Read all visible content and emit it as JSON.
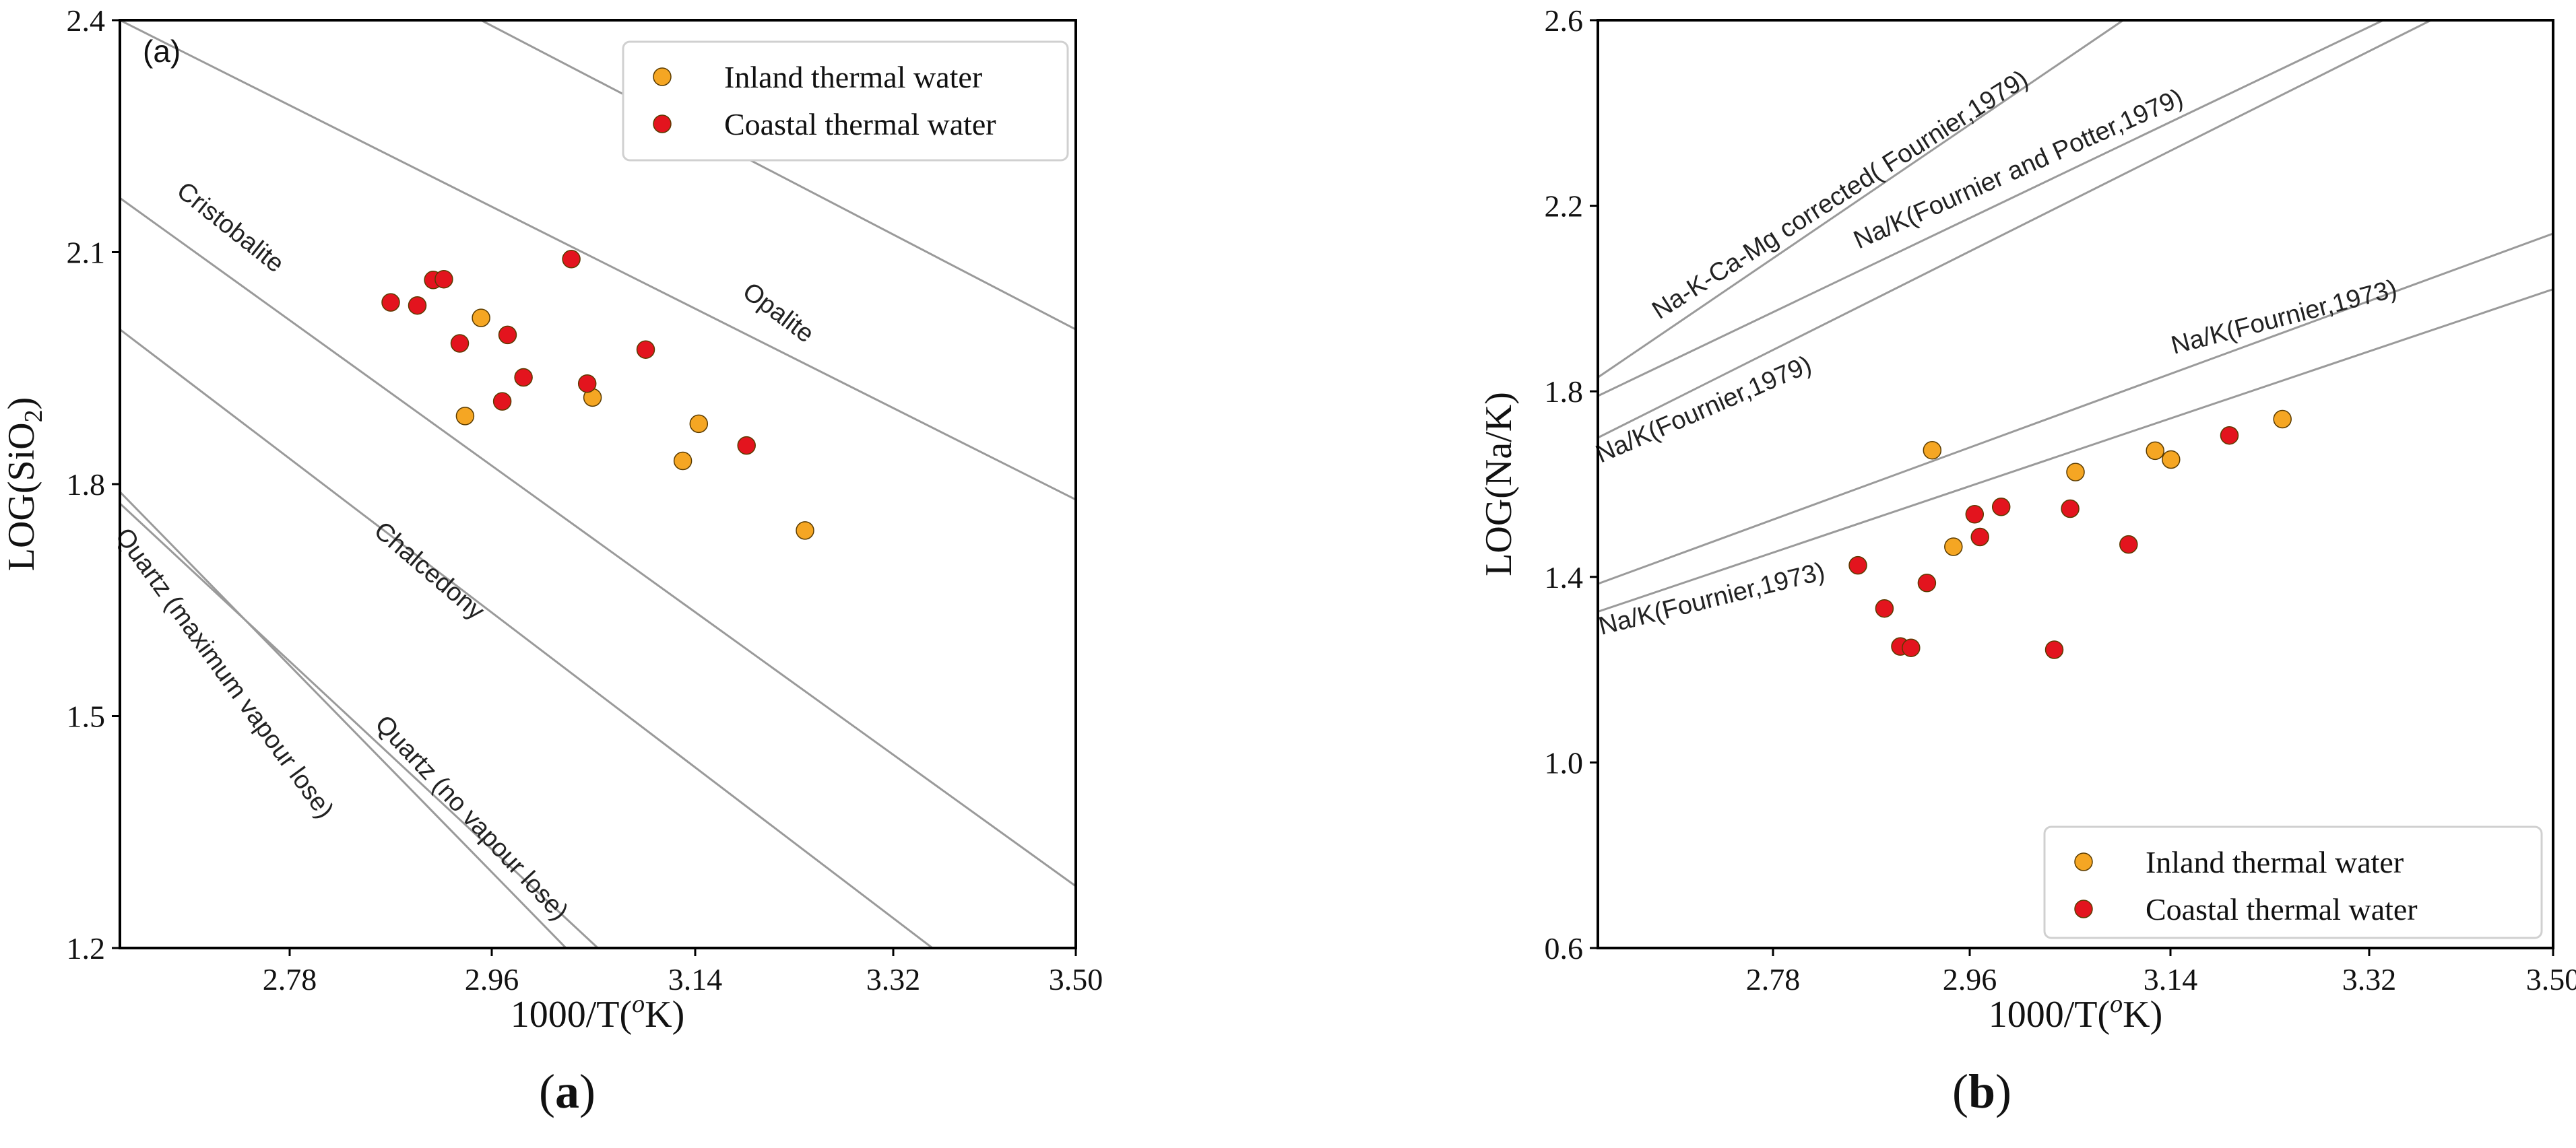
{
  "chart_data": [
    {
      "type": "scatter",
      "panel_tag": "(a)",
      "xlabel": "1000/T(oK)",
      "ylabel": "LOG(SiO2)",
      "xlim": [
        2.6,
        3.5
      ],
      "ylim": [
        1.2,
        2.4
      ],
      "xticks": [
        "2.78",
        "2.96",
        "3.14",
        "3.32",
        "3.50"
      ],
      "yticks": [
        "1.2",
        "1.5",
        "1.8",
        "2.1",
        "2.4"
      ],
      "legend_position": "top-right",
      "series": [
        {
          "name": "Inland thermal water",
          "color": "#f5a623",
          "points": [
            [
              2.94,
              2.015
            ],
            [
              2.925,
              1.888
            ],
            [
              3.045,
              1.912
            ],
            [
              3.13,
              1.83
            ],
            [
              3.145,
              1.878
            ],
            [
              3.245,
              1.74
            ]
          ]
        },
        {
          "name": "Coastal thermal water",
          "color": "#e3141e",
          "points": [
            [
              2.855,
              2.035
            ],
            [
              2.88,
              2.031
            ],
            [
              2.895,
              2.064
            ],
            [
              2.905,
              2.065
            ],
            [
              2.92,
              1.982
            ],
            [
              2.965,
              1.993
            ],
            [
              2.96,
              1.907
            ],
            [
              2.98,
              1.938
            ],
            [
              3.025,
              2.091
            ],
            [
              3.04,
              1.93
            ],
            [
              3.095,
              1.974
            ],
            [
              3.19,
              1.85
            ]
          ]
        }
      ],
      "curves": [
        {
          "name": "Opalite",
          "points": [
            [
              2.94,
              2.4
            ],
            [
              3.5,
              2.0
            ]
          ]
        },
        {
          "name": "",
          "points": [
            [
              2.6,
              2.4
            ],
            [
              3.5,
              1.78
            ]
          ]
        },
        {
          "name": "Cristobalite",
          "points": [
            [
              2.6,
              2.17
            ],
            [
              3.5,
              1.28
            ]
          ]
        },
        {
          "name": "Chalcedony",
          "points": [
            [
              2.6,
              2.0
            ],
            [
              3.365,
              1.2
            ]
          ]
        },
        {
          "name": "Quartz (no vapour lose)",
          "points": [
            [
              2.6,
              1.775
            ],
            [
              3.05,
              1.2
            ]
          ]
        },
        {
          "name": "Quartz (maximum vapour lose)",
          "points": [
            [
              2.6,
              1.79
            ],
            [
              3.02,
              1.2
            ]
          ]
        }
      ],
      "caption": "(a)"
    },
    {
      "type": "scatter",
      "xlabel": "1000/T(oK)",
      "ylabel": "LOG(Na/K)",
      "xlim": [
        2.6,
        3.5
      ],
      "ylim": [
        0.6,
        2.6
      ],
      "xticks": [
        "2.78",
        "2.96",
        "3.14",
        "3.32",
        "3.50"
      ],
      "yticks": [
        "0.6",
        "1.0",
        "1.4",
        "1.8",
        "2.2",
        "2.6"
      ],
      "legend_position": "bottom-right",
      "series": [
        {
          "name": "Inland thermal water",
          "color": "#f5a623",
          "points": [
            [
              2.915,
              1.673
            ],
            [
              2.935,
              1.465
            ],
            [
              3.05,
              1.626
            ],
            [
              3.125,
              1.672
            ],
            [
              3.14,
              1.653
            ],
            [
              3.245,
              1.74
            ]
          ]
        },
        {
          "name": "Coastal thermal water",
          "color": "#e3141e",
          "points": [
            [
              2.845,
              1.425
            ],
            [
              2.87,
              1.332
            ],
            [
              2.885,
              1.25
            ],
            [
              2.895,
              1.247
            ],
            [
              2.91,
              1.387
            ],
            [
              2.955,
              1.535
            ],
            [
              2.96,
              1.486
            ],
            [
              2.98,
              1.551
            ],
            [
              3.045,
              1.547
            ],
            [
              3.03,
              1.243
            ],
            [
              3.1,
              1.47
            ],
            [
              3.195,
              1.705
            ]
          ]
        }
      ],
      "curves": [
        {
          "name": "Na-K-Ca-Mg corrected( Fournier,1979)",
          "points": [
            [
              2.6,
              1.83
            ],
            [
              3.095,
              2.6
            ]
          ]
        },
        {
          "name": "Na/K(Fournier and Potter,1979)",
          "points": [
            [
              2.6,
              1.79
            ],
            [
              3.34,
              2.6
            ]
          ]
        },
        {
          "name": "Na/K(Fournier,1979)",
          "points": [
            [
              2.6,
              1.7
            ],
            [
              3.385,
              2.6
            ]
          ]
        },
        {
          "name": "Na/K(Fournier,1973)",
          "points": [
            [
              2.6,
              1.385
            ],
            [
              3.5,
              2.14
            ]
          ]
        },
        {
          "name": "Na/K(Fournier,1973)",
          "points": [
            [
              2.6,
              1.325
            ],
            [
              3.5,
              2.02
            ]
          ]
        }
      ],
      "caption": "(b)"
    }
  ]
}
